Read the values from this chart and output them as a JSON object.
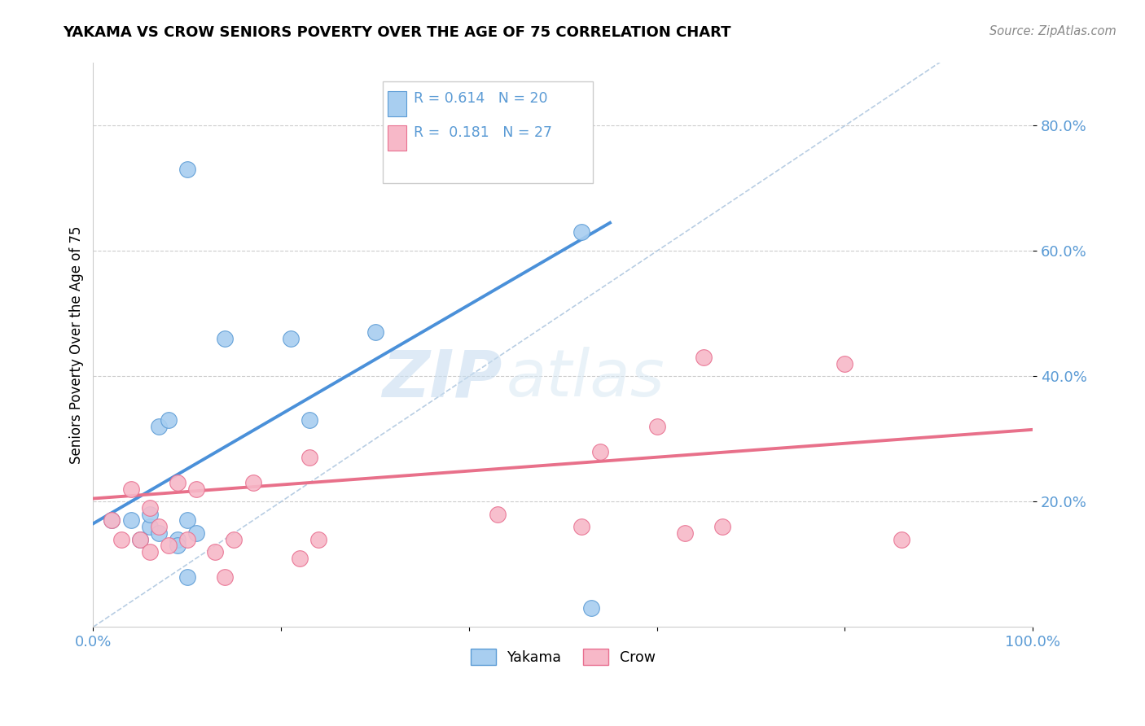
{
  "title": "YAKAMA VS CROW SENIORS POVERTY OVER THE AGE OF 75 CORRELATION CHART",
  "source": "Source: ZipAtlas.com",
  "ylabel": "Seniors Poverty Over the Age of 75",
  "xlim": [
    0.0,
    1.0
  ],
  "ylim": [
    0.0,
    0.9
  ],
  "xtick_positions": [
    0.0,
    0.2,
    0.4,
    0.6,
    0.8,
    1.0
  ],
  "xtick_labels": [
    "0.0%",
    "",
    "",
    "",
    "",
    "100.0%"
  ],
  "ytick_positions": [
    0.2,
    0.4,
    0.6,
    0.8
  ],
  "ytick_labels": [
    "20.0%",
    "40.0%",
    "60.0%",
    "80.0%"
  ],
  "grid_color": "#cccccc",
  "background_color": "#ffffff",
  "yakama_color": "#a8cef0",
  "crow_color": "#f7b8c8",
  "yakama_edge_color": "#5b9bd5",
  "crow_edge_color": "#e87090",
  "yakama_line_color": "#4a90d9",
  "crow_line_color": "#e8708a",
  "diagonal_color": "#b0c8e0",
  "tick_color": "#5b9bd5",
  "legend_R_yakama": "0.614",
  "legend_N_yakama": "20",
  "legend_R_crow": "0.181",
  "legend_N_crow": "27",
  "watermark_zip": "ZIP",
  "watermark_atlas": "atlas",
  "yakama_x": [
    0.02,
    0.04,
    0.05,
    0.06,
    0.06,
    0.07,
    0.07,
    0.08,
    0.09,
    0.09,
    0.1,
    0.1,
    0.11,
    0.14,
    0.21,
    0.23,
    0.3,
    0.52,
    0.53,
    0.1
  ],
  "yakama_y": [
    0.17,
    0.17,
    0.14,
    0.16,
    0.18,
    0.15,
    0.32,
    0.33,
    0.14,
    0.13,
    0.08,
    0.17,
    0.15,
    0.46,
    0.46,
    0.33,
    0.47,
    0.63,
    0.03,
    0.73
  ],
  "crow_x": [
    0.02,
    0.03,
    0.04,
    0.05,
    0.06,
    0.06,
    0.07,
    0.08,
    0.09,
    0.1,
    0.11,
    0.13,
    0.14,
    0.15,
    0.17,
    0.22,
    0.23,
    0.24,
    0.43,
    0.52,
    0.54,
    0.6,
    0.63,
    0.65,
    0.67,
    0.8,
    0.86
  ],
  "crow_y": [
    0.17,
    0.14,
    0.22,
    0.14,
    0.12,
    0.19,
    0.16,
    0.13,
    0.23,
    0.14,
    0.22,
    0.12,
    0.08,
    0.14,
    0.23,
    0.11,
    0.27,
    0.14,
    0.18,
    0.16,
    0.28,
    0.32,
    0.15,
    0.43,
    0.16,
    0.42,
    0.14
  ],
  "yakama_trend_x": [
    0.0,
    0.55
  ],
  "yakama_trend_y": [
    0.165,
    0.645
  ],
  "crow_trend_x": [
    0.0,
    1.0
  ],
  "crow_trend_y": [
    0.205,
    0.315
  ]
}
